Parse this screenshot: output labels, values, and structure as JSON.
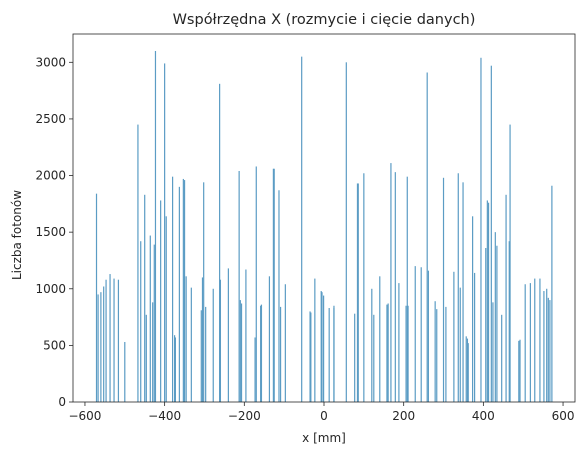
{
  "chart_data": {
    "type": "bar",
    "title": "Współrzędna X (rozmycie i cięcie danych)",
    "xlabel": "x [mm]",
    "ylabel": "Liczba fotonów",
    "xlim": [
      -630,
      630
    ],
    "ylim": [
      0,
      3250
    ],
    "xticks": [
      -600,
      -400,
      -200,
      0,
      200,
      400,
      600
    ],
    "xtick_labels": [
      "−600",
      "−400",
      "−200",
      "0",
      "200",
      "400",
      "600"
    ],
    "yticks": [
      0,
      500,
      1000,
      1500,
      2000,
      2500,
      3000
    ],
    "ytick_labels": [
      "0",
      "500",
      "1000",
      "1500",
      "2000",
      "2500",
      "3000"
    ],
    "grid": false,
    "bar_color": "#5b9cc4",
    "bars": [
      {
        "x": -571,
        "y": 1840
      },
      {
        "x": -567,
        "y": 950
      },
      {
        "x": -560,
        "y": 970
      },
      {
        "x": -553,
        "y": 1020
      },
      {
        "x": -547,
        "y": 1080
      },
      {
        "x": -537,
        "y": 1130
      },
      {
        "x": -527,
        "y": 1090
      },
      {
        "x": -516,
        "y": 1080
      },
      {
        "x": -500,
        "y": 530
      },
      {
        "x": -467,
        "y": 2450
      },
      {
        "x": -460,
        "y": 1420
      },
      {
        "x": -450,
        "y": 1830
      },
      {
        "x": -446,
        "y": 770
      },
      {
        "x": -436,
        "y": 1470
      },
      {
        "x": -430,
        "y": 880
      },
      {
        "x": -426,
        "y": 1390
      },
      {
        "x": -423,
        "y": 3100
      },
      {
        "x": -410,
        "y": 1780
      },
      {
        "x": -400,
        "y": 2990
      },
      {
        "x": -396,
        "y": 1640
      },
      {
        "x": -380,
        "y": 1990
      },
      {
        "x": -375,
        "y": 590
      },
      {
        "x": -373,
        "y": 570
      },
      {
        "x": -363,
        "y": 1900
      },
      {
        "x": -353,
        "y": 1970
      },
      {
        "x": -350,
        "y": 1960
      },
      {
        "x": -346,
        "y": 1110
      },
      {
        "x": -333,
        "y": 1010
      },
      {
        "x": -308,
        "y": 810
      },
      {
        "x": -305,
        "y": 1100
      },
      {
        "x": -302,
        "y": 1940
      },
      {
        "x": -297,
        "y": 840
      },
      {
        "x": -278,
        "y": 1000
      },
      {
        "x": -262,
        "y": 2810
      },
      {
        "x": -260,
        "y": 1080
      },
      {
        "x": -240,
        "y": 1180
      },
      {
        "x": -213,
        "y": 2040
      },
      {
        "x": -210,
        "y": 900
      },
      {
        "x": -207,
        "y": 870
      },
      {
        "x": -196,
        "y": 1170
      },
      {
        "x": -173,
        "y": 570
      },
      {
        "x": -170,
        "y": 2080
      },
      {
        "x": -159,
        "y": 850
      },
      {
        "x": -157,
        "y": 860
      },
      {
        "x": -137,
        "y": 1110
      },
      {
        "x": -127,
        "y": 2060
      },
      {
        "x": -125,
        "y": 2060
      },
      {
        "x": -113,
        "y": 1870
      },
      {
        "x": -109,
        "y": 840
      },
      {
        "x": -97,
        "y": 1040
      },
      {
        "x": -56,
        "y": 3050
      },
      {
        "x": -35,
        "y": 800
      },
      {
        "x": -33,
        "y": 790
      },
      {
        "x": -23,
        "y": 1090
      },
      {
        "x": -7,
        "y": 980
      },
      {
        "x": -5,
        "y": 970
      },
      {
        "x": -1,
        "y": 940
      },
      {
        "x": 13,
        "y": 830
      },
      {
        "x": 25,
        "y": 850
      },
      {
        "x": 25,
        "y": 830
      },
      {
        "x": 56,
        "y": 3000
      },
      {
        "x": 77,
        "y": 780
      },
      {
        "x": 84,
        "y": 1930
      },
      {
        "x": 86,
        "y": 1930
      },
      {
        "x": 100,
        "y": 2020
      },
      {
        "x": 120,
        "y": 1000
      },
      {
        "x": 125,
        "y": 770
      },
      {
        "x": 140,
        "y": 1110
      },
      {
        "x": 158,
        "y": 860
      },
      {
        "x": 161,
        "y": 870
      },
      {
        "x": 168,
        "y": 2110
      },
      {
        "x": 179,
        "y": 2030
      },
      {
        "x": 188,
        "y": 1050
      },
      {
        "x": 206,
        "y": 850
      },
      {
        "x": 209,
        "y": 1990
      },
      {
        "x": 211,
        "y": 850
      },
      {
        "x": 229,
        "y": 1200
      },
      {
        "x": 244,
        "y": 1190
      },
      {
        "x": 259,
        "y": 2910
      },
      {
        "x": 262,
        "y": 1160
      },
      {
        "x": 279,
        "y": 890
      },
      {
        "x": 283,
        "y": 820
      },
      {
        "x": 300,
        "y": 1980
      },
      {
        "x": 306,
        "y": 840
      },
      {
        "x": 326,
        "y": 1150
      },
      {
        "x": 337,
        "y": 2020
      },
      {
        "x": 342,
        "y": 1010
      },
      {
        "x": 349,
        "y": 1940
      },
      {
        "x": 357,
        "y": 580
      },
      {
        "x": 360,
        "y": 560
      },
      {
        "x": 362,
        "y": 520
      },
      {
        "x": 373,
        "y": 1640
      },
      {
        "x": 378,
        "y": 1140
      },
      {
        "x": 394,
        "y": 3040
      },
      {
        "x": 406,
        "y": 1360
      },
      {
        "x": 410,
        "y": 1780
      },
      {
        "x": 413,
        "y": 1760
      },
      {
        "x": 420,
        "y": 2970
      },
      {
        "x": 424,
        "y": 880
      },
      {
        "x": 430,
        "y": 1500
      },
      {
        "x": 434,
        "y": 1380
      },
      {
        "x": 446,
        "y": 770
      },
      {
        "x": 457,
        "y": 1830
      },
      {
        "x": 465,
        "y": 1420
      },
      {
        "x": 467,
        "y": 2450
      },
      {
        "x": 489,
        "y": 540
      },
      {
        "x": 492,
        "y": 550
      },
      {
        "x": 505,
        "y": 1040
      },
      {
        "x": 518,
        "y": 1050
      },
      {
        "x": 529,
        "y": 1090
      },
      {
        "x": 542,
        "y": 1090
      },
      {
        "x": 552,
        "y": 980
      },
      {
        "x": 559,
        "y": 1000
      },
      {
        "x": 563,
        "y": 920
      },
      {
        "x": 567,
        "y": 900
      },
      {
        "x": 572,
        "y": 1910
      }
    ]
  }
}
